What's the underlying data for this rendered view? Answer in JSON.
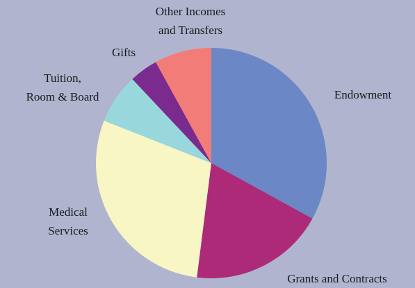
{
  "chart_data": {
    "type": "pie",
    "categories": [
      [
        "Endowment"
      ],
      [
        "Grants and Contracts"
      ],
      [
        "Medical",
        "Services"
      ],
      [
        "Tuition,",
        "Room & Board"
      ],
      [
        "Gifts"
      ],
      [
        "Other Incomes",
        "and Transfers"
      ]
    ],
    "values": [
      33,
      19,
      29,
      7,
      4,
      8
    ],
    "colors": [
      "#6b87c6",
      "#ad2a78",
      "#f8f6c4",
      "#98d8dc",
      "#7b2a8e",
      "#f27c78"
    ]
  }
}
